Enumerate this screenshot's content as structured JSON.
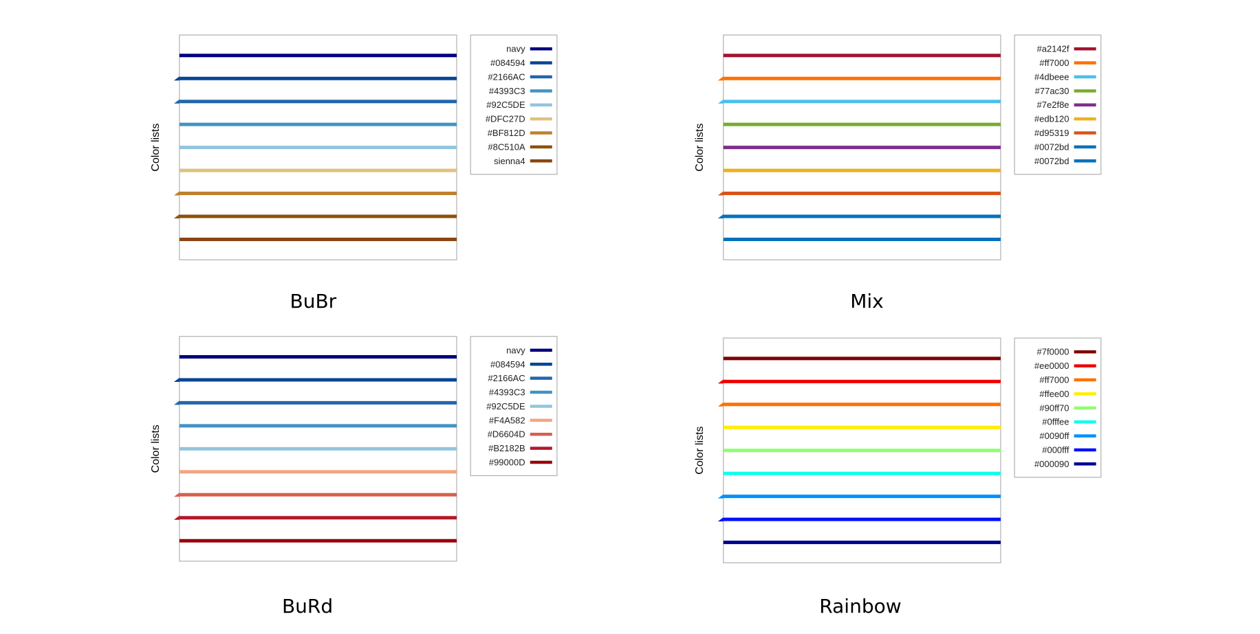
{
  "chart_data": [
    {
      "type": "line",
      "title": "BuBr",
      "ylabel": "Color lists",
      "legend_position": "right",
      "series": [
        {
          "name": "sienna4",
          "color": "#8B4513"
        },
        {
          "name": "#8C510A",
          "color": "#8C510A"
        },
        {
          "name": "#BF812D",
          "color": "#BF812D"
        },
        {
          "name": "#DFC27D",
          "color": "#DFC27D"
        },
        {
          "name": "#92C5DE",
          "color": "#92C5DE"
        },
        {
          "name": "#4393C3",
          "color": "#4393C3"
        },
        {
          "name": "#2166AC",
          "color": "#2166AC"
        },
        {
          "name": "#084594",
          "color": "#084594"
        },
        {
          "name": "navy",
          "color": "#000080"
        }
      ]
    },
    {
      "type": "line",
      "title": "Mix",
      "ylabel": "Color lists",
      "legend_position": "right",
      "series": [
        {
          "name": "#0072bd",
          "color": "#0072bd"
        },
        {
          "name": "#0072bd",
          "color": "#0072bd"
        },
        {
          "name": "#d95319",
          "color": "#d95319"
        },
        {
          "name": "#edb120",
          "color": "#edb120"
        },
        {
          "name": "#7e2f8e",
          "color": "#7e2f8e"
        },
        {
          "name": "#77ac30",
          "color": "#77ac30"
        },
        {
          "name": "#4dbeee",
          "color": "#4dbeee"
        },
        {
          "name": "#ff7000",
          "color": "#ff7000"
        },
        {
          "name": "#a2142f",
          "color": "#a2142f"
        }
      ]
    },
    {
      "type": "line",
      "title": "BuRd",
      "ylabel": "Color lists",
      "legend_position": "right",
      "series": [
        {
          "name": "#99000D",
          "color": "#99000D"
        },
        {
          "name": "#B2182B",
          "color": "#B2182B"
        },
        {
          "name": "#D6604D",
          "color": "#D6604D"
        },
        {
          "name": "#F4A582",
          "color": "#F4A582"
        },
        {
          "name": "#92C5DE",
          "color": "#92C5DE"
        },
        {
          "name": "#4393C3",
          "color": "#4393C3"
        },
        {
          "name": "#2166AC",
          "color": "#2166AC"
        },
        {
          "name": "#084594",
          "color": "#084594"
        },
        {
          "name": "navy",
          "color": "#000080"
        }
      ]
    },
    {
      "type": "line",
      "title": "Rainbow",
      "ylabel": "Color lists",
      "legend_position": "right",
      "series": [
        {
          "name": "#000090",
          "color": "#000090"
        },
        {
          "name": "#000fff",
          "color": "#000fff"
        },
        {
          "name": "#0090ff",
          "color": "#0090ff"
        },
        {
          "name": "#0fffee",
          "color": "#0fffee"
        },
        {
          "name": "#90ff70",
          "color": "#90ff70"
        },
        {
          "name": "#ffee00",
          "color": "#ffee00"
        },
        {
          "name": "#ff7000",
          "color": "#ff7000"
        },
        {
          "name": "#ee0000",
          "color": "#ee0000"
        },
        {
          "name": "#7f0000",
          "color": "#7f0000"
        }
      ]
    }
  ]
}
